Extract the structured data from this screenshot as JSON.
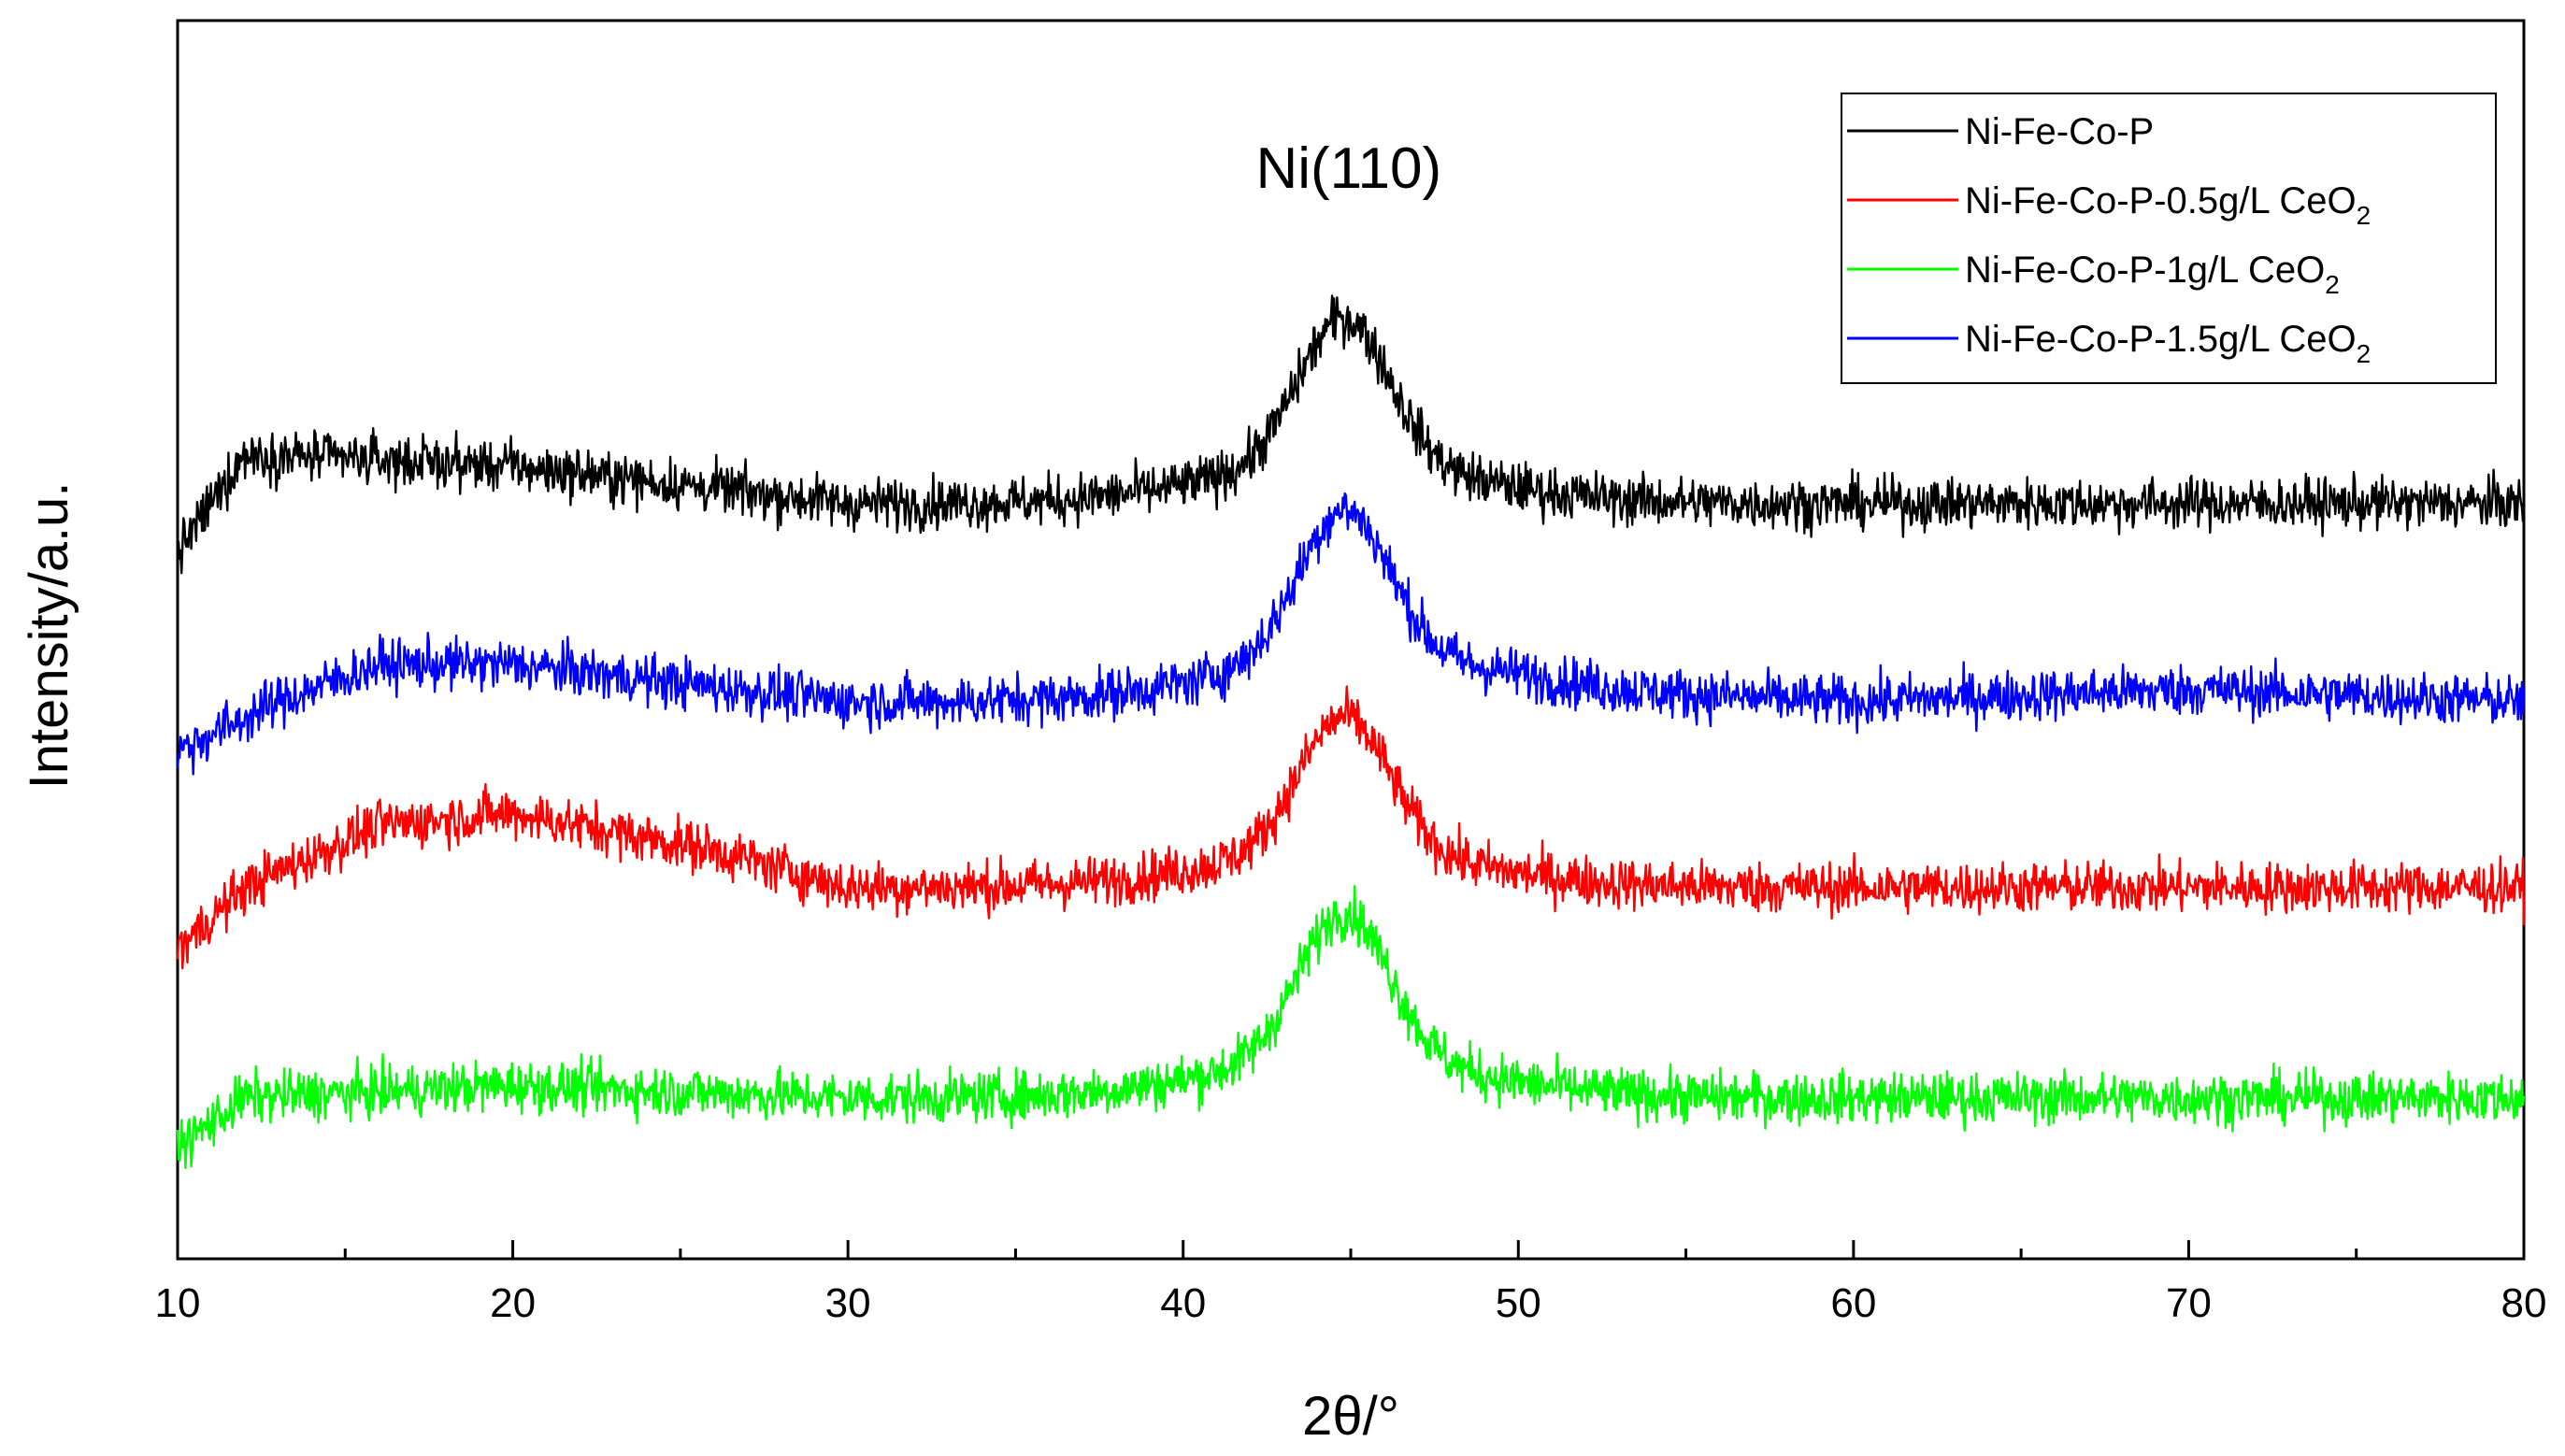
{
  "chart_data": {
    "type": "line",
    "title": "",
    "xlabel": "2θ/°",
    "ylabel": "Intensity/a.u.",
    "xlim": [
      10,
      80
    ],
    "x_major_ticks": [
      10,
      20,
      30,
      40,
      50,
      60,
      70,
      80
    ],
    "x_minor_step": 5,
    "yticks_shown": false,
    "ylim": [
      0,
      100
    ],
    "grid": false,
    "legend_position": "top-right",
    "peak_position": 44.8,
    "annotations": [
      {
        "text": "Ni(110)",
        "x": 44.8,
        "y": 88
      }
    ],
    "series": [
      {
        "name": "Ni-Fe-Co-P",
        "legend_main": "Ni-Fe-Co-P",
        "legend_sub": "",
        "color": "#000000",
        "baseline": 62,
        "peak_height": 12,
        "noise": 2.0,
        "profile": [
          [
            10,
            57
          ],
          [
            12,
            65
          ],
          [
            20,
            64
          ],
          [
            30,
            61
          ],
          [
            40,
            61
          ],
          [
            50,
            61
          ],
          [
            60,
            61
          ],
          [
            70,
            61
          ],
          [
            80,
            61
          ]
        ]
      },
      {
        "name": "Ni-Fe-Co-P-0.5g/L CeO2",
        "legend_main": "Ni-Fe-Co-P-0.5g/L CeO",
        "legend_sub": "2",
        "color": "#ff0000",
        "baseline": 30,
        "peak_height": 11,
        "noise": 2.0,
        "profile": [
          [
            10,
            25
          ],
          [
            12,
            30
          ],
          [
            16,
            35
          ],
          [
            20,
            36
          ],
          [
            26,
            33
          ],
          [
            30,
            30
          ],
          [
            40,
            30
          ],
          [
            50,
            30
          ],
          [
            60,
            30
          ],
          [
            70,
            30
          ],
          [
            80,
            30
          ]
        ]
      },
      {
        "name": "Ni-Fe-Co-P-1g/L CeO2",
        "legend_main": "Ni-Fe-Co-P-1g/L CeO",
        "legend_sub": "2",
        "color": "#00ff00",
        "baseline": 12,
        "peak_height": 12,
        "noise": 2.0,
        "profile": [
          [
            10,
            9
          ],
          [
            12,
            13
          ],
          [
            20,
            14
          ],
          [
            30,
            13
          ],
          [
            40,
            13
          ],
          [
            50,
            13
          ],
          [
            60,
            13
          ],
          [
            70,
            13
          ],
          [
            80,
            13
          ]
        ]
      },
      {
        "name": "Ni-Fe-Co-P-1.5g/L CeO2",
        "legend_main": "Ni-Fe-Co-P-1.5g/L CeO",
        "legend_sub": "2",
        "color": "#0000ff",
        "baseline": 44,
        "peak_height": 12,
        "noise": 2.0,
        "profile": [
          [
            10,
            41
          ],
          [
            13,
            45
          ],
          [
            16,
            48
          ],
          [
            20,
            48
          ],
          [
            30,
            45
          ],
          [
            40,
            45
          ],
          [
            50,
            46
          ],
          [
            60,
            45
          ],
          [
            70,
            46
          ],
          [
            80,
            45
          ]
        ]
      }
    ],
    "legend_order": [
      0,
      1,
      2,
      3
    ]
  }
}
